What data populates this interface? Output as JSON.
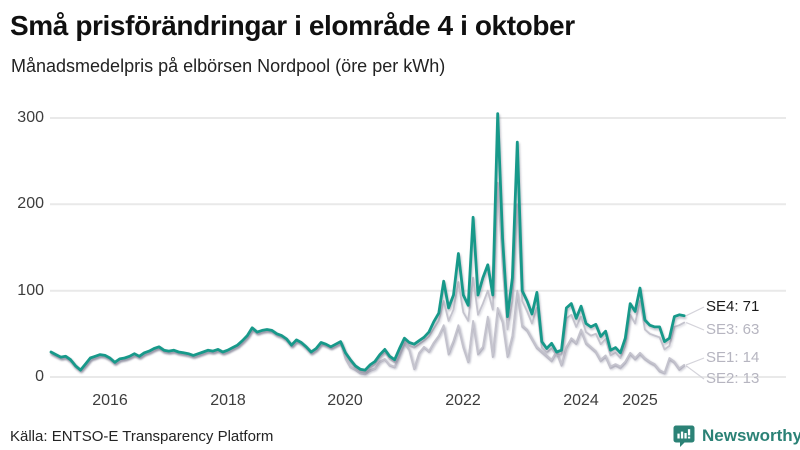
{
  "header": {
    "title": "Små prisförändringar i elområde 4 i oktober",
    "subtitle": "Månadsmedelpris på elbörsen Nordpool (öre per kWh)"
  },
  "footer": {
    "source": "Källa: ENTSO-E Transparency Platform",
    "brand": "Newsworthy"
  },
  "colors": {
    "accent_teal": "#17998a",
    "gray_series": "#c4c3cd",
    "gridline": "#e9e9e9",
    "brand_teal": "#2b8276",
    "end_label_gray": "#b6b5c0",
    "end_label_dark": "#1a1a1a"
  },
  "chart_data": {
    "type": "line",
    "title": "Små prisförändringar i elområde 4 i oktober",
    "subtitle": "Månadsmedelpris på elbörsen Nordpool (öre per kWh)",
    "unit": "öre per kWh",
    "frequency": "monthly",
    "x_start": "2015-01",
    "x_end": "2025-10",
    "ylim": [
      0,
      320
    ],
    "grid": "horizontal",
    "legend_position": "right-end-labels",
    "y_tick_labels": [
      "0",
      "100",
      "200",
      "300"
    ],
    "x_tick_labels": [
      "2016",
      "2018",
      "2020",
      "2022",
      "2024",
      "2025"
    ],
    "series": [
      {
        "id": "SE2",
        "name": "SE2",
        "color": "#c4c3cd",
        "last_value": 13,
        "values": [
          28,
          25,
          22,
          23,
          19,
          12,
          8,
          14,
          21,
          23,
          25,
          24,
          21,
          16,
          20,
          21,
          23,
          26,
          23,
          27,
          29,
          32,
          34,
          30,
          29,
          30,
          28,
          27,
          26,
          24,
          26,
          28,
          30,
          29,
          31,
          28,
          30,
          33,
          36,
          41,
          47,
          56,
          51,
          53,
          54,
          53,
          49,
          47,
          43,
          36,
          42,
          39,
          34,
          28,
          32,
          39,
          37,
          34,
          37,
          40,
          21,
          11,
          8,
          4,
          3,
          7,
          9,
          17,
          20,
          13,
          11,
          24,
          39,
          31,
          9,
          27,
          34,
          29,
          39,
          47,
          58,
          26,
          40,
          58,
          34,
          17,
          63,
          26,
          33,
          68,
          23,
          78,
          63,
          23,
          46,
          97,
          58,
          53,
          43,
          33,
          28,
          23,
          18,
          28,
          13,
          33,
          43,
          38,
          53,
          38,
          33,
          28,
          18,
          23,
          10,
          13,
          10,
          16,
          26,
          20,
          26,
          20,
          16,
          13,
          6,
          4,
          20,
          16,
          8,
          13
        ]
      },
      {
        "id": "SE1",
        "name": "SE1",
        "color": "#c4c3cd",
        "last_value": 14,
        "values": [
          28,
          25,
          22,
          23,
          19,
          12,
          8,
          14,
          21,
          23,
          25,
          24,
          21,
          16,
          20,
          21,
          23,
          26,
          23,
          27,
          29,
          32,
          34,
          30,
          29,
          30,
          28,
          27,
          26,
          24,
          26,
          28,
          30,
          29,
          31,
          28,
          30,
          33,
          36,
          41,
          47,
          56,
          51,
          53,
          54,
          53,
          49,
          47,
          43,
          36,
          42,
          39,
          34,
          28,
          32,
          39,
          37,
          34,
          37,
          40,
          22,
          12,
          9,
          5,
          4,
          8,
          10,
          18,
          21,
          14,
          12,
          25,
          40,
          32,
          10,
          28,
          35,
          30,
          40,
          48,
          60,
          28,
          42,
          60,
          36,
          18,
          65,
          28,
          35,
          70,
          25,
          80,
          65,
          25,
          48,
          100,
          60,
          55,
          45,
          35,
          30,
          25,
          20,
          30,
          15,
          35,
          45,
          40,
          55,
          40,
          35,
          30,
          20,
          25,
          12,
          15,
          12,
          18,
          28,
          22,
          28,
          22,
          18,
          15,
          8,
          5,
          22,
          18,
          10,
          14
        ]
      },
      {
        "id": "SE3",
        "name": "SE3",
        "color": "#c4c3cd",
        "last_value": 63,
        "values": [
          28,
          25,
          22,
          23,
          19,
          12,
          8,
          14,
          21,
          23,
          25,
          24,
          21,
          16,
          20,
          21,
          23,
          26,
          23,
          27,
          29,
          32,
          34,
          30,
          29,
          30,
          28,
          27,
          26,
          24,
          26,
          28,
          30,
          29,
          31,
          28,
          30,
          33,
          36,
          41,
          47,
          56,
          51,
          53,
          54,
          53,
          49,
          47,
          43,
          36,
          42,
          39,
          34,
          28,
          32,
          39,
          37,
          34,
          37,
          40,
          26,
          17,
          11,
          7,
          6,
          11,
          15,
          23,
          29,
          21,
          17,
          29,
          42,
          36,
          34,
          38,
          42,
          47,
          56,
          65,
          88,
          65,
          78,
          110,
          75,
          65,
          115,
          72,
          85,
          100,
          78,
          225,
          128,
          55,
          88,
          200,
          88,
          76,
          62,
          80,
          34,
          28,
          33,
          25,
          26,
          68,
          72,
          58,
          70,
          52,
          48,
          50,
          38,
          44,
          25,
          28,
          22,
          36,
          72,
          62,
          88,
          55,
          50,
          48,
          46,
          32,
          36,
          58,
          60,
          63
        ]
      },
      {
        "id": "SE4",
        "name": "SE4",
        "color": "#17998a",
        "last_value": 71,
        "values": [
          29,
          26,
          23,
          24,
          20,
          13,
          8,
          15,
          22,
          24,
          26,
          25,
          22,
          17,
          21,
          22,
          24,
          27,
          24,
          28,
          30,
          33,
          35,
          31,
          30,
          31,
          29,
          28,
          27,
          25,
          27,
          29,
          31,
          30,
          32,
          29,
          31,
          34,
          37,
          42,
          48,
          57,
          52,
          54,
          55,
          54,
          50,
          48,
          44,
          37,
          43,
          40,
          35,
          29,
          33,
          40,
          38,
          35,
          38,
          41,
          28,
          20,
          13,
          9,
          8,
          14,
          18,
          26,
          32,
          24,
          20,
          33,
          45,
          40,
          38,
          42,
          46,
          52,
          64,
          74,
          111,
          80,
          95,
          143,
          95,
          83,
          185,
          95,
          115,
          130,
          95,
          305,
          160,
          70,
          115,
          272,
          100,
          88,
          73,
          98,
          41,
          33,
          39,
          29,
          31,
          80,
          85,
          68,
          82,
          62,
          58,
          61,
          47,
          53,
          31,
          34,
          28,
          45,
          85,
          76,
          103,
          66,
          60,
          58,
          58,
          41,
          45,
          70,
          72,
          71
        ]
      }
    ],
    "end_labels": [
      {
        "series": "SE4",
        "text": "SE4: 71",
        "color": "#1a1a1a"
      },
      {
        "series": "SE3",
        "text": "SE3: 63",
        "color": "#b6b5c0"
      },
      {
        "series": "SE1",
        "text": "SE1: 14",
        "color": "#b6b5c0"
      },
      {
        "series": "SE2",
        "text": "SE2: 13",
        "color": "#b6b5c0"
      }
    ]
  }
}
